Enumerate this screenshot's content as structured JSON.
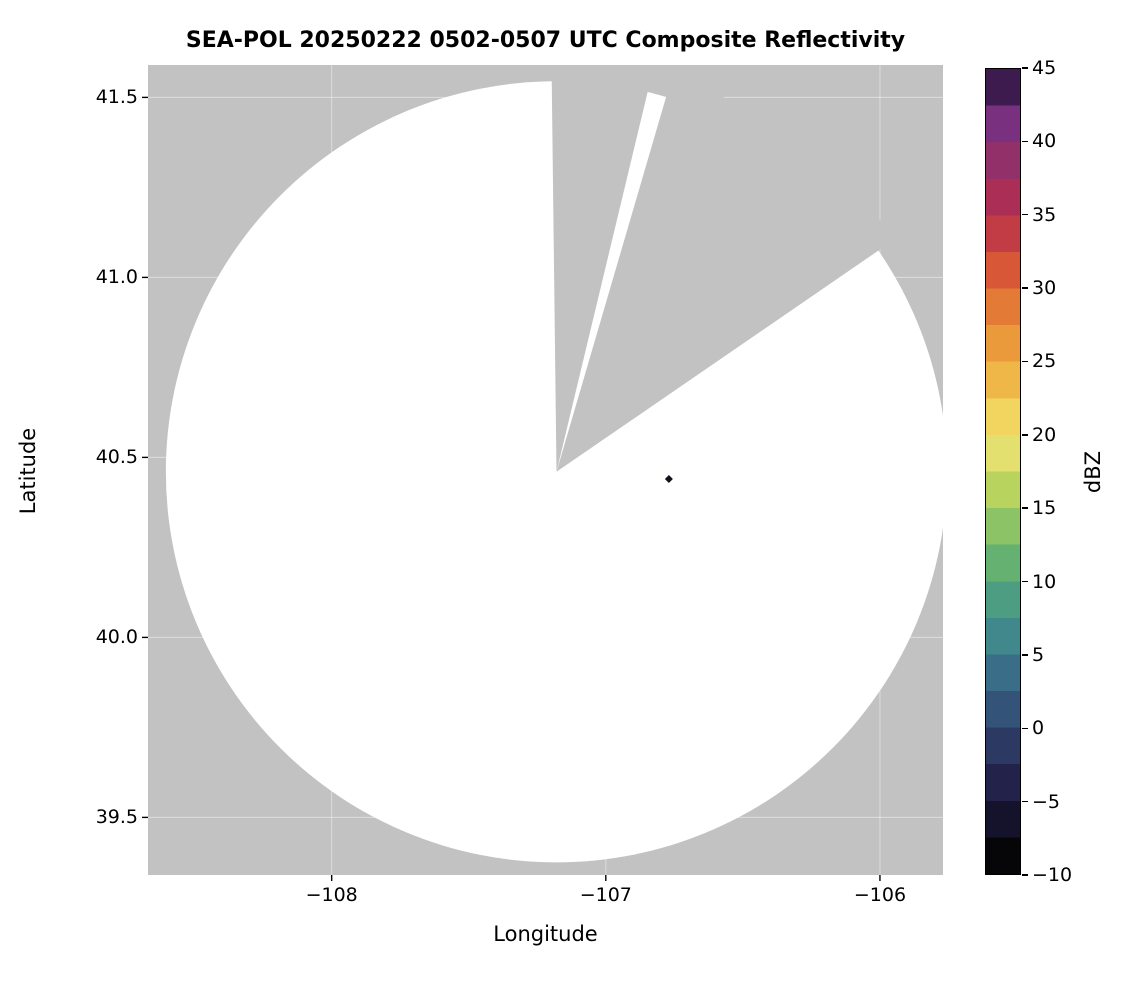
{
  "chart_data": {
    "type": "heatmap",
    "subtype": "radar-ppi-composite-reflectivity-map",
    "title": "SEA-POL 20250222 0502-0507 UTC Composite Reflectivity",
    "xlabel": "Longitude",
    "ylabel": "Latitude",
    "colorbar_label": "dBZ",
    "xlim": [
      -108.67,
      -105.77
    ],
    "ylim": [
      39.34,
      41.59
    ],
    "x_ticks": [
      -108,
      -107,
      -106
    ],
    "x_tick_labels": [
      "−108",
      "−107",
      "−106"
    ],
    "y_ticks": [
      39.5,
      40.0,
      40.5,
      41.0,
      41.5
    ],
    "y_tick_labels": [
      "39.5",
      "40.0",
      "40.5",
      "41.0",
      "41.5"
    ],
    "grid": true,
    "legend": "none",
    "radar": {
      "center_lon": -107.18,
      "center_lat": 40.46,
      "radius_deg_lat": 1.085,
      "missing_sectors_az_deg": [
        [
          -0.7,
          13.5
        ],
        [
          16.3,
          55.5
        ]
      ]
    },
    "points": [
      {
        "lon": -106.77,
        "lat": 40.44,
        "dbz": -8
      }
    ],
    "colorbar": {
      "min": -10,
      "max": 45,
      "ticks": [
        45,
        40,
        35,
        30,
        25,
        20,
        15,
        10,
        5,
        0,
        -5,
        -10
      ],
      "tick_labels": [
        "45",
        "40",
        "35",
        "30",
        "25",
        "20",
        "15",
        "10",
        "5",
        "0",
        "−5",
        "−10"
      ],
      "band_size_dbz": 2.5,
      "band_colors_bottom_to_top": [
        "#060608",
        "#15132b",
        "#23224a",
        "#2c3a63",
        "#335478",
        "#3a6e88",
        "#41888c",
        "#4d9d82",
        "#65b172",
        "#8cc366",
        "#b8d45f",
        "#e3e070",
        "#f2d55f",
        "#efb748",
        "#ea9a3b",
        "#e37a35",
        "#d75737",
        "#c23c45",
        "#aa2e56",
        "#923069",
        "#78307f",
        "#3d1b4f"
      ]
    },
    "colors": {
      "background_nodata": "#c2c2c2",
      "coverage": "#ffffff",
      "grid": "#ffffff",
      "point": "#12121c",
      "text": "#000000"
    }
  }
}
